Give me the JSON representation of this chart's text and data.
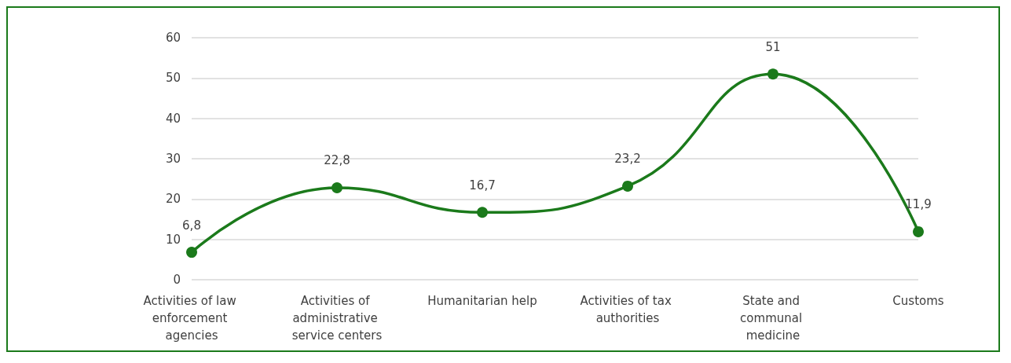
{
  "chart_data": {
    "type": "line",
    "categories": [
      "Activities of law enforcement agencies",
      "Activities of administrative service centers",
      "Humanitarian help",
      "Activities of tax authorities",
      "State and communal medicine",
      "Customs"
    ],
    "series": [
      {
        "color": "#1b7a1b",
        "values": [
          6.8,
          22.8,
          16.7,
          23.2,
          51,
          11.9
        ],
        "value_labels": [
          "6,8",
          "22,8",
          "16,7",
          "23,2",
          "51",
          "11,9"
        ]
      }
    ],
    "ylim": [
      0,
      60
    ],
    "yticks": [
      0,
      10,
      20,
      30,
      40,
      50,
      60
    ],
    "grid": "y",
    "marker": "circle",
    "line_style": "solid"
  }
}
